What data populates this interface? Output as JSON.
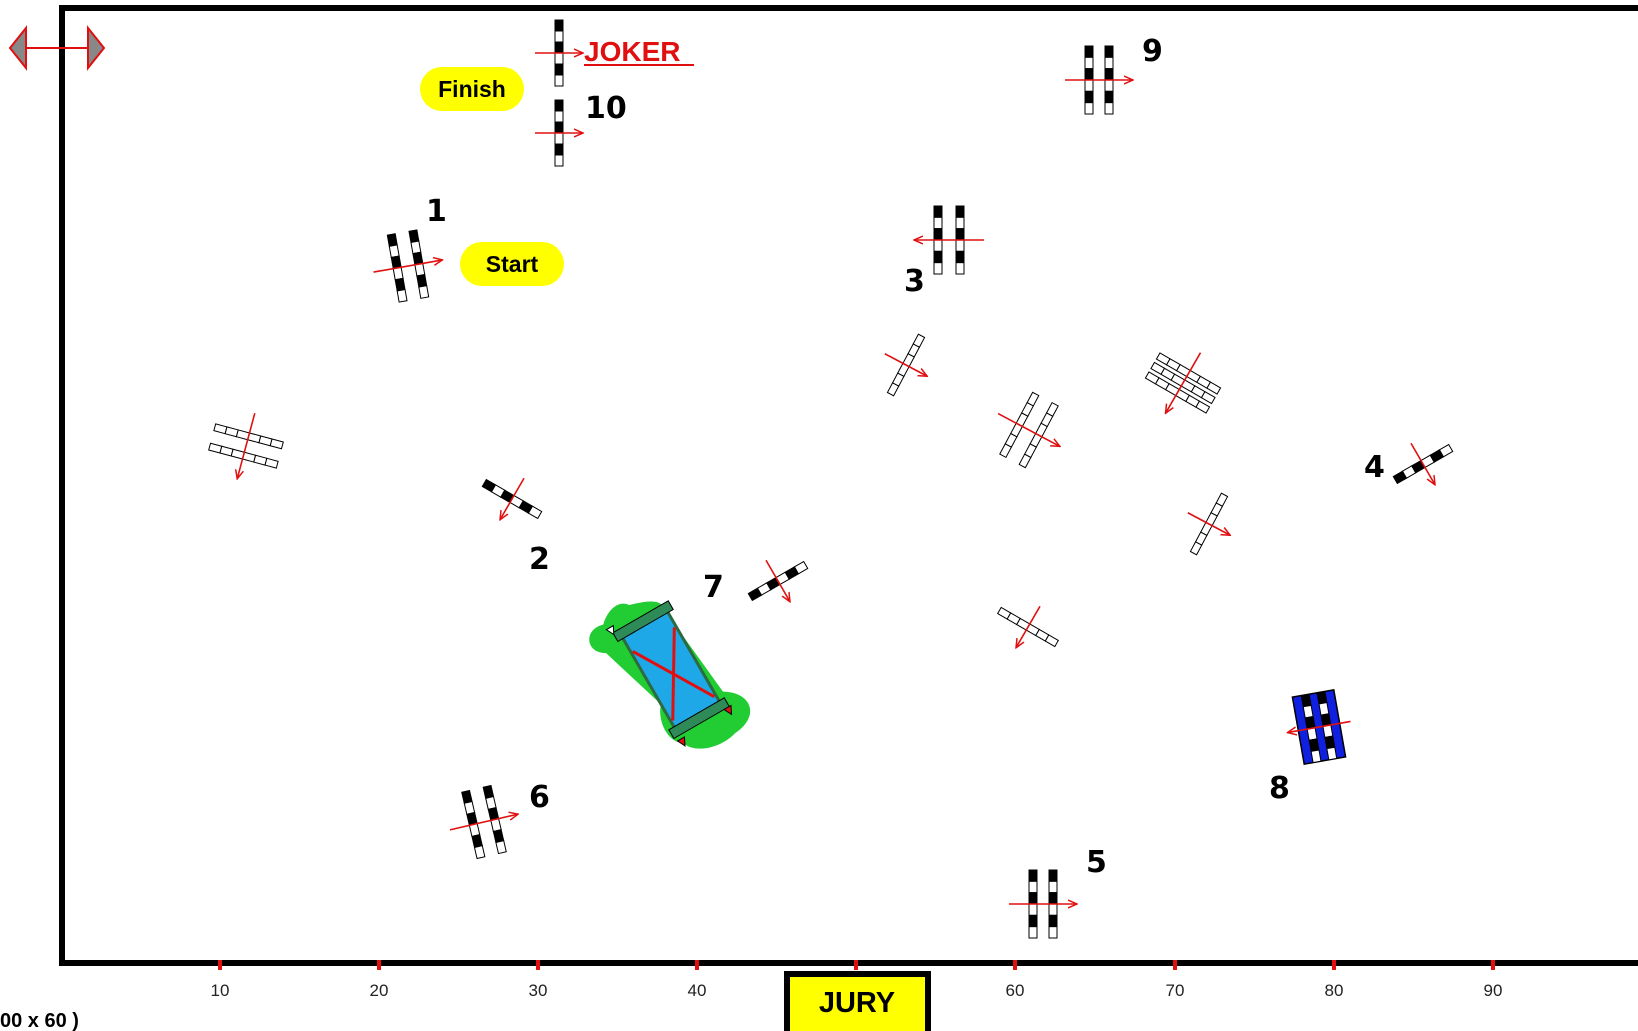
{
  "arena": {
    "size_label": "00 x 60 )",
    "x_ticks": [
      "10",
      "20",
      "30",
      "40",
      "60",
      "70",
      "80",
      "90"
    ]
  },
  "labels": {
    "finish": "Finish",
    "start": "Start",
    "joker": "JOKER",
    "jury": "JURY"
  },
  "obstacles": [
    {
      "number": "1"
    },
    {
      "number": "2"
    },
    {
      "number": "3"
    },
    {
      "number": "4"
    },
    {
      "number": "5"
    },
    {
      "number": "6"
    },
    {
      "number": "7"
    },
    {
      "number": "8"
    },
    {
      "number": "9"
    },
    {
      "number": "10"
    }
  ],
  "colors": {
    "border": "#000000",
    "direction_arrow": "#e01010",
    "start_finish_bg": "#ffff00",
    "water": "#1fa8e8",
    "grass": "#22cc33",
    "blue_fence": "#1020e0",
    "pole_black": "#000000",
    "pole_white": "#ffffff"
  }
}
